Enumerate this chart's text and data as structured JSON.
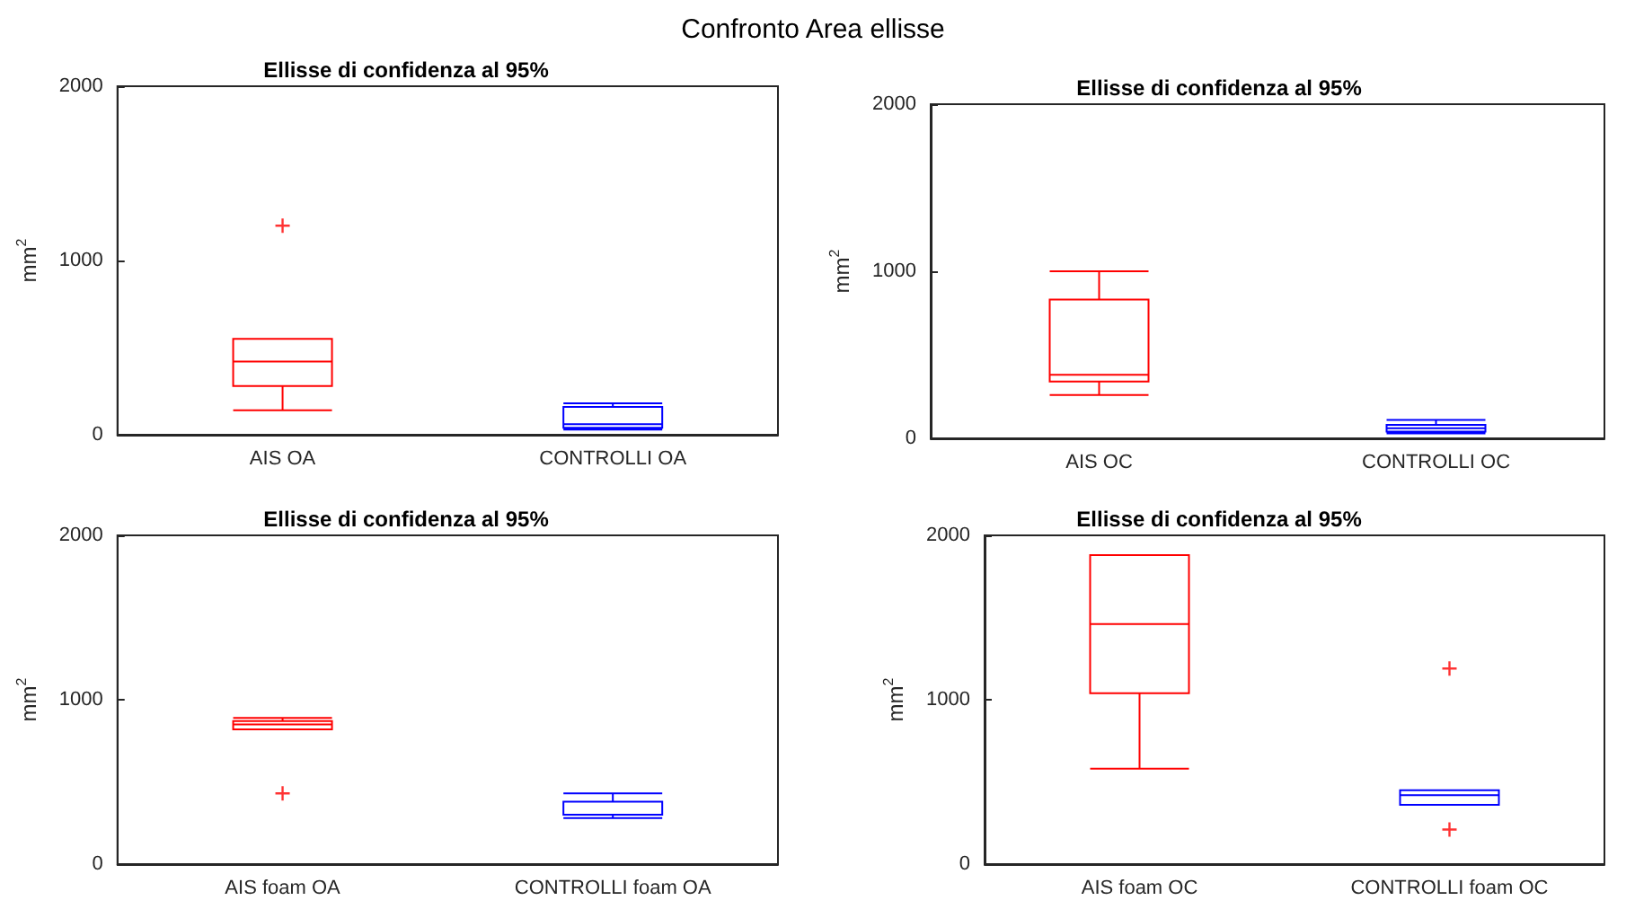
{
  "chart_data": [
    {
      "type": "box",
      "title": "Ellisse di confidenza al 95%",
      "ylabel": "mm$^{2}$",
      "annotations": [
        "Confronto Area ellisse"
      ],
      "categories": [
        "AIS OA",
        "CONTROLLI OA"
      ],
      "colors": [
        "#ff0000",
        "#0000ff"
      ],
      "ylim": [
        0,
        2000
      ],
      "yticks": [
        0,
        1000,
        2000
      ],
      "marker": "cross",
      "boxes": [
        {
          "low": 140,
          "q1": 280,
          "median": 420,
          "q3": 550,
          "high": 550
        },
        {
          "low": 30,
          "q1": 40,
          "median": 60,
          "q3": 160,
          "high": 180
        }
      ],
      "series": [
        {
          "type": "scatter",
          "color": "#ff0000",
          "x": [
            "AIS OA"
          ],
          "values": [
            1200
          ]
        }
      ]
    },
    {
      "type": "box",
      "title": "Ellisse di confidenza al 95%",
      "ylabel": "mm$^{2}$",
      "categories": [
        "AIS OC",
        "CONTROLLI OC"
      ],
      "colors": [
        "#ff0000",
        "#0000ff"
      ],
      "ylim": [
        0,
        2000
      ],
      "yticks": [
        0,
        1000,
        2000
      ],
      "boxes": [
        {
          "low": 260,
          "q1": 340,
          "median": 380,
          "q3": 830,
          "high": 1000
        },
        {
          "low": 30,
          "q1": 40,
          "median": 60,
          "q3": 80,
          "high": 110
        }
      ]
    },
    {
      "type": "box",
      "title": "Ellisse di confidenza al 95%",
      "ylabel": "mm$^{2}$",
      "categories": [
        "AIS foam OA",
        "CONTROLLI foam OA"
      ],
      "colors": [
        "#ff0000",
        "#0000ff"
      ],
      "ylim": [
        0,
        2000
      ],
      "yticks": [
        0,
        1000,
        2000
      ],
      "marker": "cross",
      "boxes": [
        {
          "low": 820,
          "q1": 820,
          "median": 850,
          "q3": 870,
          "high": 890
        },
        {
          "low": 280,
          "q1": 300,
          "median": 380,
          "q3": 380,
          "high": 430
        }
      ],
      "series": [
        {
          "type": "scatter",
          "color": "#ff0000",
          "x": [
            "AIS foam OA"
          ],
          "values": [
            430
          ]
        }
      ]
    },
    {
      "type": "box",
      "title": "Ellisse di confidenza al 95%",
      "ylabel": "mm$^{2}$",
      "categories": [
        "AIS foam OC",
        "CONTROLLI foam OC"
      ],
      "colors": [
        "#ff0000",
        "#0000ff"
      ],
      "ylim": [
        0,
        2000
      ],
      "yticks": [
        0,
        1000,
        2000
      ],
      "marker": "cross",
      "boxes": [
        {
          "low": 580,
          "q1": 1040,
          "median": 1460,
          "q3": 1880,
          "high": 1880
        },
        {
          "low": 360,
          "q1": 360,
          "median": 420,
          "q3": 450,
          "high": 450
        }
      ],
      "series": [
        {
          "type": "scatter",
          "color": "#ff0000",
          "x": [
            "CONTROLLI foam OC",
            "CONTROLLI foam OC"
          ],
          "values": [
            1190,
            210
          ]
        }
      ]
    }
  ]
}
